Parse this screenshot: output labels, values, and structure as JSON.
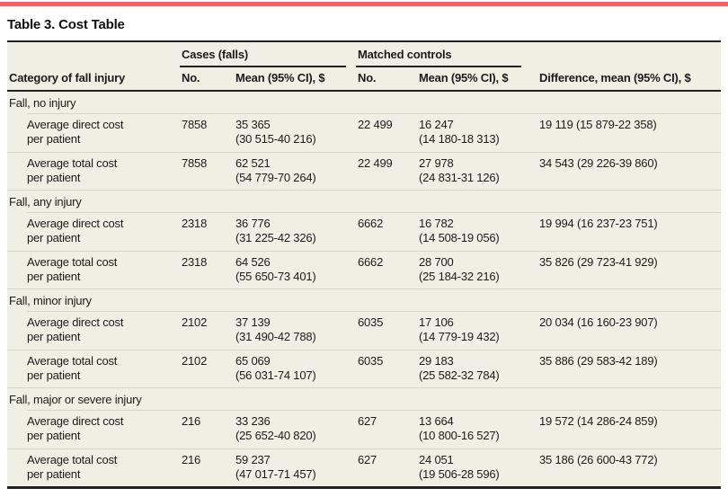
{
  "title": "Table 3. Cost Table",
  "colors": {
    "accent": "#f8625e",
    "panel": "#f0efe4",
    "dark": "#212121",
    "sep": "#d7d5c6",
    "text": "#1b1b1b"
  },
  "table": {
    "group_headers": [
      {
        "label": "Cases (falls)"
      },
      {
        "label": "Matched controls"
      }
    ],
    "columns": [
      "Category of fall injury",
      "No.",
      "Mean (95% CI), $",
      "No.",
      "Mean (95% CI), $",
      "Difference, mean (95% CI), $"
    ],
    "sections": [
      {
        "header": "Fall, no injury",
        "rows": [
          {
            "category": "Average direct cost\nper patient",
            "cases_no": "7858",
            "cases_mean": "35 365\n(30 515-40 216)",
            "controls_no": "22 499",
            "controls_mean": "16 247\n(14 180-18 313)",
            "difference": "19 119 (15 879-22 358)"
          },
          {
            "category": "Average total cost\nper patient",
            "cases_no": "7858",
            "cases_mean": "62 521\n(54 779-70 264)",
            "controls_no": "22 499",
            "controls_mean": "27 978\n(24 831-31 126)",
            "difference": "34 543 (29 226-39 860)"
          }
        ]
      },
      {
        "header": "Fall, any injury",
        "rows": [
          {
            "category": "Average direct cost\nper patient",
            "cases_no": "2318",
            "cases_mean": "36 776\n(31 225-42 326)",
            "controls_no": "6662",
            "controls_mean": "16 782\n(14 508-19 056)",
            "difference": "19 994 (16 237-23 751)"
          },
          {
            "category": "Average total cost\nper patient",
            "cases_no": "2318",
            "cases_mean": "64 526\n(55 650-73 401)",
            "controls_no": "6662",
            "controls_mean": "28 700\n(25 184-32 216)",
            "difference": "35 826 (29 723-41 929)"
          }
        ]
      },
      {
        "header": "Fall, minor injury",
        "rows": [
          {
            "category": "Average direct cost\nper patient",
            "cases_no": "2102",
            "cases_mean": "37 139\n(31 490-42 788)",
            "controls_no": "6035",
            "controls_mean": "17 106\n(14 779-19 432)",
            "difference": "20 034 (16 160-23 907)"
          },
          {
            "category": "Average total cost\nper patient",
            "cases_no": "2102",
            "cases_mean": "65 069\n(56 031-74 107)",
            "controls_no": "6035",
            "controls_mean": "29 183\n(25 582-32 784)",
            "difference": "35 886 (29 583-42 189)"
          }
        ]
      },
      {
        "header": "Fall, major or severe injury",
        "rows": [
          {
            "category": "Average direct cost\nper patient",
            "cases_no": "216",
            "cases_mean": "33 236\n(25 652-40 820)",
            "controls_no": "627",
            "controls_mean": "13 664\n(10 800-16 527)",
            "difference": "19 572 (14 286-24 859)"
          },
          {
            "category": "Average total cost\nper patient",
            "cases_no": "216",
            "cases_mean": "59 237\n(47 017-71 457)",
            "controls_no": "627",
            "controls_mean": "24 051\n(19 506-28 596)",
            "difference": "35 186 (26 600-43 772)"
          }
        ]
      }
    ]
  }
}
